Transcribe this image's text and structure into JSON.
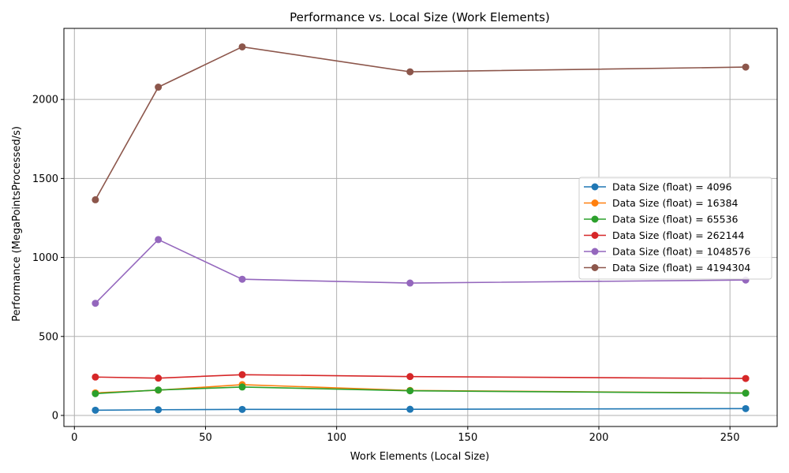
{
  "chart_data": {
    "type": "line",
    "title": "Performance vs. Local Size (Work Elements)",
    "xlabel": "Work Elements (Local Size)",
    "ylabel": "Performance (MegaPointsProcessed/s)",
    "xlim": [
      -4,
      268
    ],
    "ylim": [
      -70,
      2450
    ],
    "xticks": [
      0,
      50,
      100,
      150,
      200,
      250
    ],
    "yticks": [
      0,
      500,
      1000,
      1500,
      2000
    ],
    "grid": true,
    "legend_position": "center-right",
    "x": [
      8,
      32,
      64,
      128,
      256
    ],
    "series": [
      {
        "name": "Data Size (float) = 4096",
        "color": "#1f77b4",
        "values": [
          33,
          36,
          38,
          39,
          43
        ]
      },
      {
        "name": "Data Size (float) = 16384",
        "color": "#ff7f0e",
        "values": [
          143,
          160,
          195,
          158,
          142
        ]
      },
      {
        "name": "Data Size (float) = 65536",
        "color": "#2ca02c",
        "values": [
          138,
          161,
          180,
          156,
          141
        ]
      },
      {
        "name": "Data Size (float) = 262144",
        "color": "#d62728",
        "values": [
          243,
          236,
          258,
          246,
          234
        ]
      },
      {
        "name": "Data Size (float) = 1048576",
        "color": "#9467bd",
        "values": [
          710,
          1113,
          862,
          838,
          857
        ]
      },
      {
        "name": "Data Size (float) = 4194304",
        "color": "#8c564b",
        "values": [
          1365,
          2078,
          2333,
          2175,
          2205
        ]
      }
    ]
  }
}
